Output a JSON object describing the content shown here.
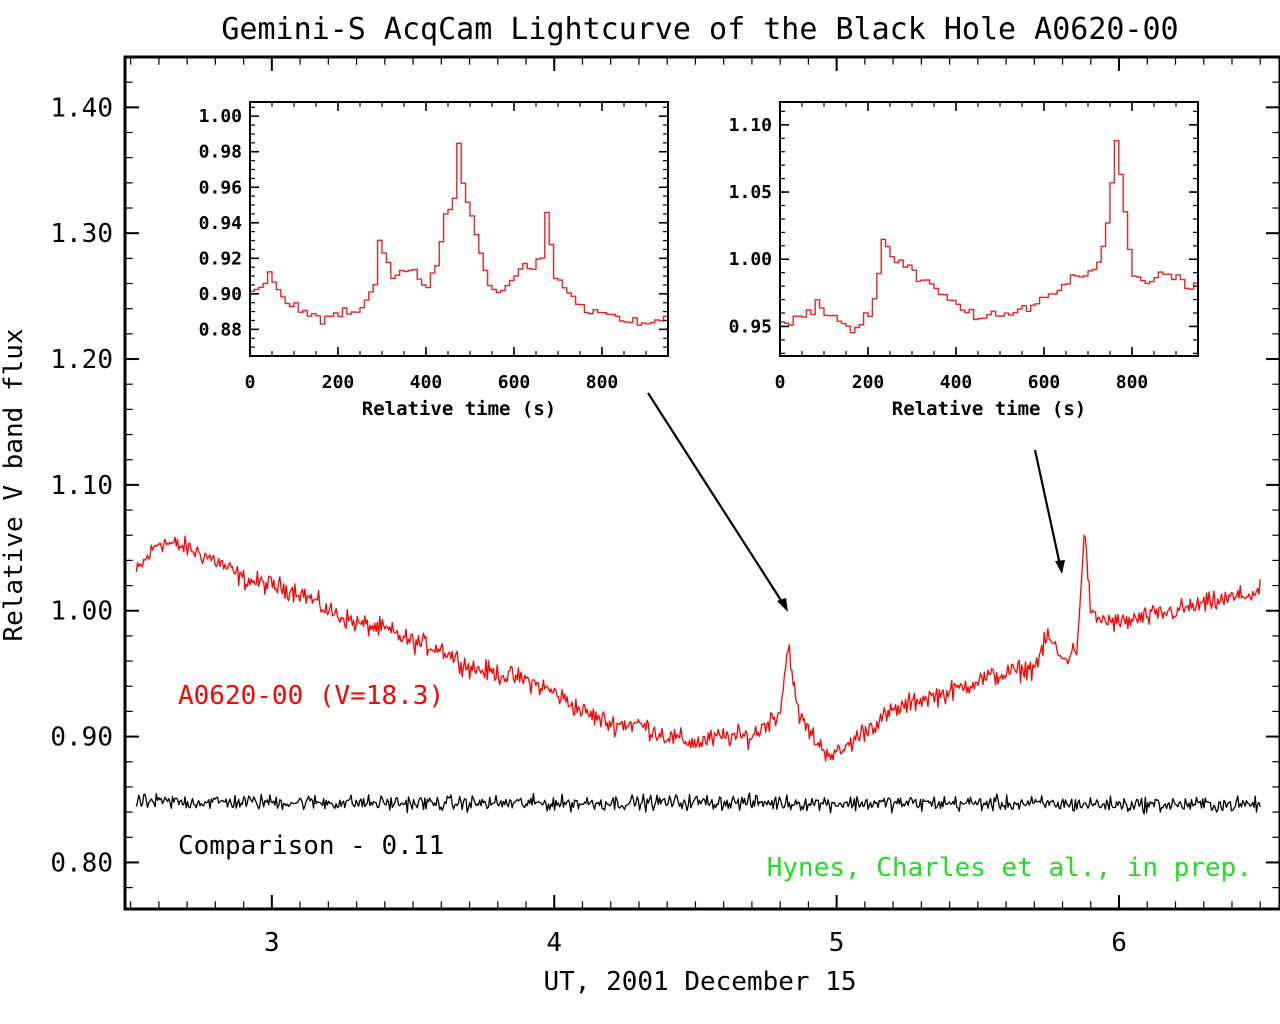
{
  "title": "Gemini-S AcqCam Lightcurve of the Black Hole A0620-00",
  "chart_data": [
    {
      "type": "line",
      "xlabel": "UT, 2001 December 15",
      "ylabel": "Relative V band flux",
      "xlim": [
        2.48,
        6.57
      ],
      "ylim": [
        0.763,
        1.44
      ],
      "xticks": [
        3,
        4,
        5,
        6
      ],
      "xtick_labels": [
        "3",
        "4",
        "5",
        "6"
      ],
      "yticks": [
        0.8,
        0.9,
        1.0,
        1.1,
        1.2,
        1.3,
        1.4
      ],
      "ytick_labels": [
        "0.80",
        "0.90",
        "1.00",
        "1.10",
        "1.20",
        "1.30",
        "1.40"
      ],
      "series": [
        {
          "name": "A0620-00 (V=18.3)",
          "color": "#ff0000",
          "x": [
            2.52,
            2.6,
            2.7,
            2.8,
            2.9,
            3.0,
            3.1,
            3.2,
            3.3,
            3.4,
            3.5,
            3.6,
            3.7,
            3.8,
            3.9,
            4.0,
            4.1,
            4.2,
            4.3,
            4.4,
            4.5,
            4.6,
            4.7,
            4.75,
            4.8,
            4.83,
            4.86,
            4.9,
            4.95,
            5.0,
            5.05,
            5.1,
            5.2,
            5.3,
            5.4,
            5.5,
            5.6,
            5.7,
            5.75,
            5.8,
            5.85,
            5.88,
            5.9,
            6.0,
            6.1,
            6.2,
            6.3,
            6.4,
            6.5
          ],
          "y": [
            1.03,
            1.055,
            1.05,
            1.04,
            1.025,
            1.02,
            1.015,
            1.0,
            0.99,
            0.985,
            0.975,
            0.97,
            0.955,
            0.95,
            0.945,
            0.935,
            0.92,
            0.91,
            0.91,
            0.9,
            0.895,
            0.9,
            0.9,
            0.91,
            0.92,
            0.975,
            0.92,
            0.905,
            0.89,
            0.885,
            0.895,
            0.905,
            0.92,
            0.93,
            0.935,
            0.945,
            0.95,
            0.955,
            0.98,
            0.96,
            0.97,
            1.065,
            0.995,
            0.99,
            0.995,
            1.0,
            1.005,
            1.01,
            1.015
          ]
        },
        {
          "name": "Comparison - 0.11",
          "color": "#000000",
          "x": [
            2.52,
            3.0,
            3.5,
            4.0,
            4.5,
            5.0,
            5.5,
            6.0,
            6.5
          ],
          "y": [
            0.848,
            0.848,
            0.847,
            0.847,
            0.848,
            0.847,
            0.847,
            0.846,
            0.846
          ]
        }
      ],
      "annotations": [
        {
          "text": "A0620-00 (V=18.3)",
          "color": "#ff0000"
        },
        {
          "text": "Comparison - 0.11",
          "color": "#000000"
        },
        {
          "text": "Hynes, Charles et al., in prep.",
          "color": "#22dd22"
        }
      ],
      "grid": false
    },
    {
      "type": "line",
      "xlabel": "Relative time (s)",
      "ylabel": "",
      "xlim": [
        0,
        950
      ],
      "ylim": [
        0.865,
        1.008
      ],
      "xticks": [
        0,
        200,
        400,
        600,
        800
      ],
      "xtick_labels": [
        "0",
        "200",
        "400",
        "600",
        "800"
      ],
      "yticks": [
        0.88,
        0.9,
        0.92,
        0.94,
        0.96,
        0.98,
        1.0
      ],
      "ytick_labels": [
        "0.88",
        "0.90",
        "0.92",
        "0.94",
        "0.96",
        "0.98",
        "1.00"
      ],
      "series": [
        {
          "color": "#ee2222",
          "x": [
            0,
            40,
            80,
            120,
            160,
            200,
            240,
            280,
            290,
            320,
            360,
            400,
            420,
            440,
            460,
            470,
            480,
            500,
            520,
            540,
            560,
            600,
            620,
            640,
            660,
            670,
            690,
            720,
            760,
            800,
            840,
            880,
            920,
            950
          ],
          "y": [
            0.9,
            0.91,
            0.895,
            0.89,
            0.885,
            0.89,
            0.89,
            0.905,
            0.93,
            0.91,
            0.915,
            0.905,
            0.915,
            0.945,
            0.955,
            0.985,
            0.96,
            0.945,
            0.925,
            0.905,
            0.9,
            0.91,
            0.915,
            0.915,
            0.92,
            0.945,
            0.91,
            0.9,
            0.89,
            0.89,
            0.885,
            0.885,
            0.885,
            0.89
          ]
        }
      ],
      "grid": false
    },
    {
      "type": "line",
      "xlabel": "Relative time (s)",
      "ylabel": "",
      "xlim": [
        0,
        950
      ],
      "ylim": [
        0.928,
        1.117
      ],
      "xticks": [
        0,
        200,
        400,
        600,
        800
      ],
      "xtick_labels": [
        "0",
        "200",
        "400",
        "600",
        "800"
      ],
      "yticks": [
        0.95,
        1.0,
        1.05,
        1.1
      ],
      "ytick_labels": [
        "0.95",
        "1.00",
        "1.05",
        "1.10"
      ],
      "series": [
        {
          "color": "#ee2222",
          "x": [
            0,
            40,
            80,
            120,
            160,
            200,
            220,
            230,
            260,
            300,
            340,
            380,
            420,
            460,
            500,
            540,
            580,
            620,
            660,
            700,
            720,
            740,
            750,
            760,
            770,
            790,
            800,
            830,
            860,
            900,
            950
          ],
          "y": [
            0.952,
            0.955,
            0.965,
            0.955,
            0.945,
            0.96,
            0.99,
            1.01,
            1.0,
            0.99,
            0.98,
            0.97,
            0.96,
            0.955,
            0.958,
            0.962,
            0.968,
            0.975,
            0.985,
            0.99,
            0.995,
            1.03,
            1.06,
            1.09,
            1.06,
            1.01,
            0.99,
            0.98,
            0.99,
            0.985,
            0.98
          ]
        }
      ],
      "grid": false
    }
  ]
}
